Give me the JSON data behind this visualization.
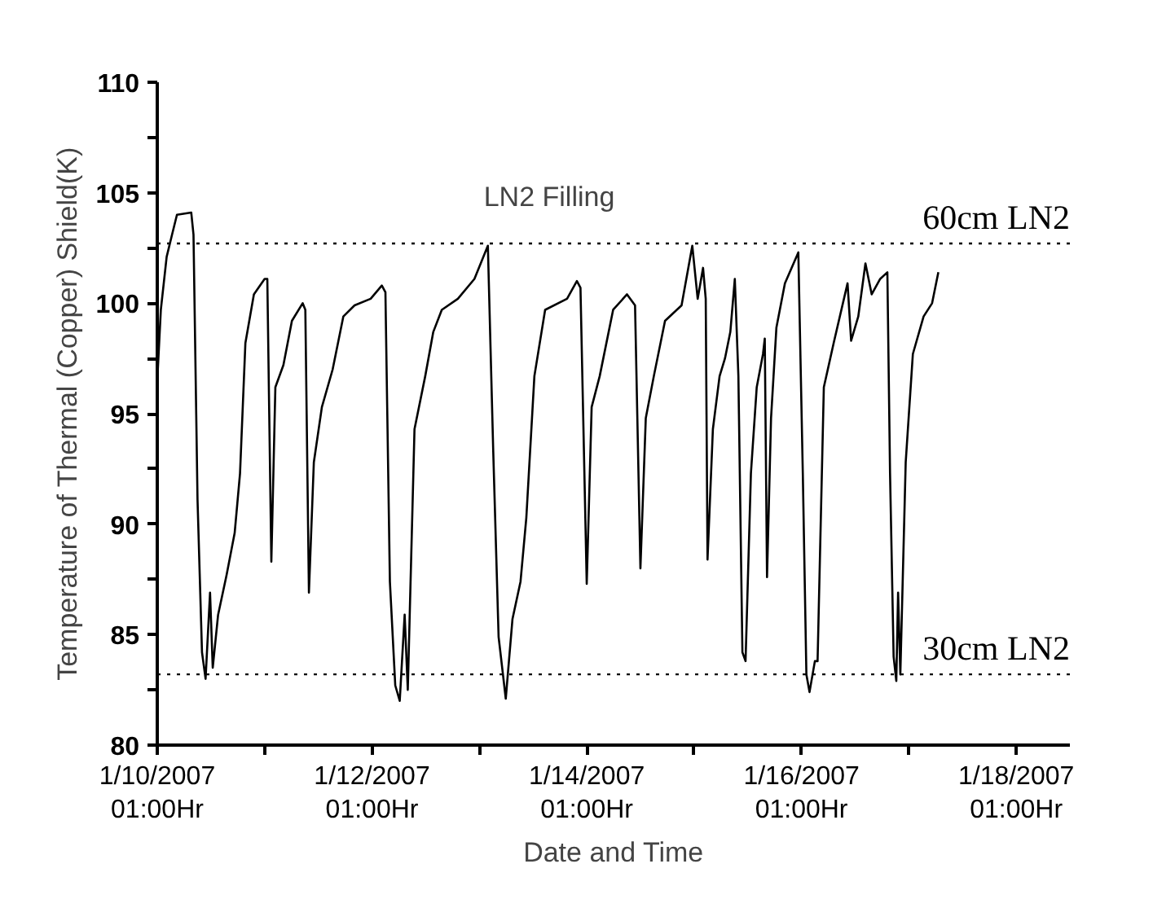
{
  "chart_data": {
    "type": "line",
    "xlabel": "Date and Time",
    "ylabel": "Temperature of Thermal (Copper) Shield(K)",
    "annotations": [
      "LN2 Filling"
    ],
    "x": [
      "2007-01-10T01:00",
      "2007-01-10T01:48",
      "2007-01-10T03:06",
      "2007-01-10T04:18",
      "2007-01-10T05:24",
      "2007-01-10T08:36",
      "2007-01-10T09:06",
      "2007-01-10T10:00",
      "2007-01-10T11:00",
      "2007-01-10T11:48",
      "2007-01-10T12:48",
      "2007-01-10T13:24",
      "2007-01-10T14:36",
      "2007-01-10T16:30",
      "2007-01-10T18:18",
      "2007-01-10T19:30",
      "2007-01-10T20:42",
      "2007-01-10T22:36",
      "2007-01-11T01:00",
      "2007-01-11T01:36",
      "2007-01-11T02:30",
      "2007-01-11T03:24",
      "2007-01-11T05:12",
      "2007-01-11T07:06",
      "2007-01-11T09:30",
      "2007-01-11T10:06",
      "2007-01-11T10:54",
      "2007-01-11T12:00",
      "2007-01-11T13:48",
      "2007-01-11T16:12",
      "2007-01-11T18:36",
      "2007-01-11T21:06",
      "2007-01-12T00:42",
      "2007-01-12T03:12",
      "2007-01-12T04:00",
      "2007-01-12T05:00",
      "2007-01-12T06:12",
      "2007-01-12T07:12",
      "2007-01-12T08:18",
      "2007-01-12T09:00",
      "2007-01-12T10:30",
      "2007-01-12T12:54",
      "2007-01-12T14:42",
      "2007-01-12T16:36",
      "2007-01-12T20:12",
      "2007-01-12T23:54",
      "2007-01-13T02:54",
      "2007-01-13T04:06",
      "2007-01-13T05:18",
      "2007-01-13T06:54",
      "2007-01-13T08:24",
      "2007-01-13T10:12",
      "2007-01-13T11:30",
      "2007-01-13T13:18",
      "2007-01-13T15:42",
      "2007-01-13T20:36",
      "2007-01-13T22:48",
      "2007-01-13T23:36",
      "2007-01-14T01:00",
      "2007-01-14T02:06",
      "2007-01-14T03:54",
      "2007-01-14T06:54",
      "2007-01-14T10:00",
      "2007-01-14T11:48",
      "2007-01-14T13:00",
      "2007-01-14T14:12",
      "2007-01-14T16:00",
      "2007-01-14T18:30",
      "2007-01-14T22:12",
      "2007-01-15T00:36",
      "2007-01-15T01:48",
      "2007-01-15T03:00",
      "2007-01-15T03:36",
      "2007-01-15T04:00",
      "2007-01-15T05:12",
      "2007-01-15T06:42",
      "2007-01-15T07:54",
      "2007-01-15T09:06",
      "2007-01-15T10:06",
      "2007-01-15T10:54",
      "2007-01-15T11:48",
      "2007-01-15T12:30",
      "2007-01-15T13:42",
      "2007-01-15T15:00",
      "2007-01-15T16:24",
      "2007-01-15T16:48",
      "2007-01-15T17:18",
      "2007-01-15T18:12",
      "2007-01-15T19:24",
      "2007-01-15T21:18",
      "2007-01-16T00:18",
      "2007-01-16T01:18",
      "2007-01-16T02:06",
      "2007-01-16T02:48",
      "2007-01-16T04:00",
      "2007-01-16T04:36",
      "2007-01-16T06:00",
      "2007-01-16T08:12",
      "2007-01-16T11:18",
      "2007-01-16T12:06",
      "2007-01-16T13:42",
      "2007-01-16T15:18",
      "2007-01-16T16:42",
      "2007-01-16T18:36",
      "2007-01-16T20:12",
      "2007-01-16T20:48",
      "2007-01-16T21:36",
      "2007-01-16T22:12",
      "2007-01-16T22:36",
      "2007-01-16T23:06",
      "2007-01-17T00:18",
      "2007-01-17T01:54",
      "2007-01-17T04:18",
      "2007-01-17T06:12",
      "2007-01-17T07:36"
    ],
    "series": [
      {
        "color": "#000000",
        "values": [
          96.5,
          99.7,
          102.1,
          103.1,
          104.0,
          104.1,
          103.1,
          91.1,
          84.2,
          83.0,
          86.9,
          83.5,
          85.9,
          87.7,
          89.6,
          92.3,
          98.2,
          100.4,
          101.1,
          101.1,
          88.3,
          96.2,
          97.2,
          99.2,
          100.0,
          99.7,
          86.9,
          92.8,
          95.3,
          97.0,
          99.4,
          99.9,
          100.2,
          100.8,
          100.5,
          87.4,
          82.7,
          82.0,
          85.9,
          82.5,
          94.3,
          96.7,
          98.7,
          99.7,
          100.2,
          101.1,
          102.6,
          93.3,
          84.9,
          82.1,
          85.7,
          87.4,
          90.3,
          96.7,
          99.7,
          100.2,
          101.0,
          100.7,
          87.3,
          95.3,
          96.7,
          99.7,
          100.4,
          99.9,
          88.0,
          94.8,
          96.7,
          99.2,
          99.9,
          102.6,
          100.2,
          101.6,
          100.2,
          88.4,
          94.3,
          96.7,
          97.5,
          98.7,
          101.1,
          96.7,
          84.2,
          83.8,
          92.3,
          96.2,
          97.7,
          98.4,
          87.6,
          94.8,
          98.9,
          100.9,
          102.3,
          92.3,
          83.2,
          82.4,
          83.8,
          83.8,
          96.2,
          98.2,
          100.9,
          98.3,
          99.4,
          101.8,
          100.4,
          101.1,
          101.4,
          92.3,
          84.0,
          82.9,
          86.9,
          83.2,
          92.8,
          97.7,
          99.4,
          100.0,
          101.4
        ]
      }
    ],
    "xlim": [
      "2007-01-10T01:00",
      "2007-01-18T13:00"
    ],
    "ylim": [
      80,
      110
    ],
    "xticks": [
      {
        "value": "2007-01-10T01:00",
        "label": "1/10/2007\n01:00Hr"
      },
      {
        "value": "2007-01-11T01:00",
        "label": null
      },
      {
        "value": "2007-01-12T01:00",
        "label": "1/12/2007\n01:00Hr"
      },
      {
        "value": "2007-01-13T01:00",
        "label": null
      },
      {
        "value": "2007-01-14T01:00",
        "label": "1/14/2007\n01:00Hr"
      },
      {
        "value": "2007-01-15T01:00",
        "label": null
      },
      {
        "value": "2007-01-16T01:00",
        "label": "1/16/2007\n01:00Hr"
      },
      {
        "value": "2007-01-17T01:00",
        "label": null
      },
      {
        "value": "2007-01-18T01:00",
        "label": "1/18/2007\n01:00Hr"
      }
    ],
    "yticks": [
      80,
      {
        "value": 82.5,
        "label": null
      },
      85,
      {
        "value": 87.5,
        "label": null
      },
      90,
      {
        "value": 92.5,
        "label": null
      },
      95,
      {
        "value": 97.5,
        "label": null
      },
      100,
      {
        "value": 102.5,
        "label": null
      },
      105,
      {
        "value": 107.5,
        "label": null
      },
      110
    ],
    "ref_lines": [
      {
        "axis": "y",
        "value": 102.7,
        "label": "60cm LN2",
        "color": "#000000",
        "line_style": "dotted"
      },
      {
        "axis": "y",
        "value": 83.2,
        "label": "30cm LN2",
        "color": "#000000",
        "line_style": "dotted"
      }
    ],
    "grid": false,
    "marker": "none",
    "line_style": "solid"
  }
}
